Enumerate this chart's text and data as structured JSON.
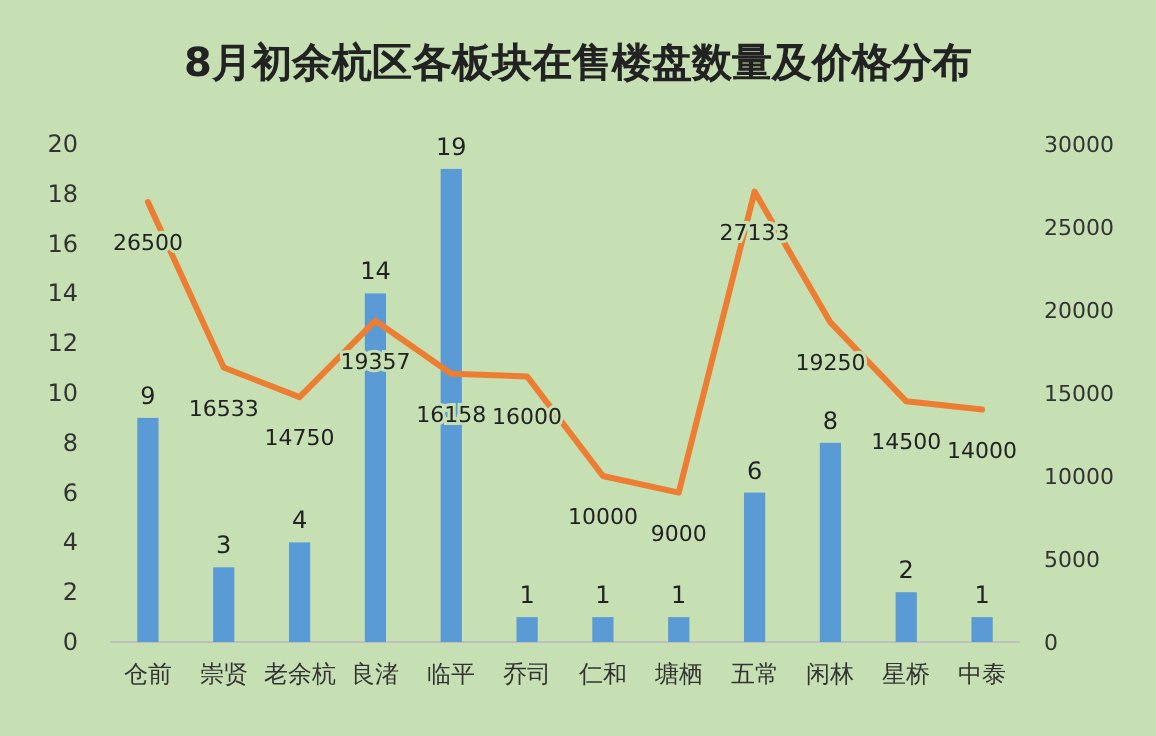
{
  "chart_data": {
    "type": "bar",
    "title": "8月初余杭区各板块在售楼盘数量及价格分布",
    "categories": [
      "仓前",
      "崇贤",
      "老余杭",
      "良渚",
      "临平",
      "乔司",
      "仁和",
      "塘栖",
      "五常",
      "闲林",
      "星桥",
      "中泰"
    ],
    "series": [
      {
        "color": "#5b9bd5",
        "values": [
          9,
          3,
          4,
          14,
          19,
          1,
          1,
          1,
          6,
          8,
          2,
          1
        ]
      },
      {
        "type": "line",
        "axis": "y2",
        "color": "#ed7d31",
        "values": [
          26500,
          16533,
          14750,
          19357,
          16158,
          16000,
          10000,
          9000,
          27133,
          19250,
          14500,
          14000
        ]
      }
    ],
    "ylim": [
      0,
      20
    ],
    "yticks": [
      0,
      2,
      4,
      6,
      8,
      10,
      12,
      14,
      16,
      18,
      20
    ],
    "y2lim": [
      0,
      30000
    ],
    "y2ticks": [
      0,
      5000,
      10000,
      15000,
      20000,
      25000,
      30000
    ],
    "data_labels": true,
    "grid": false,
    "marker": "none",
    "line_style": "solid"
  }
}
